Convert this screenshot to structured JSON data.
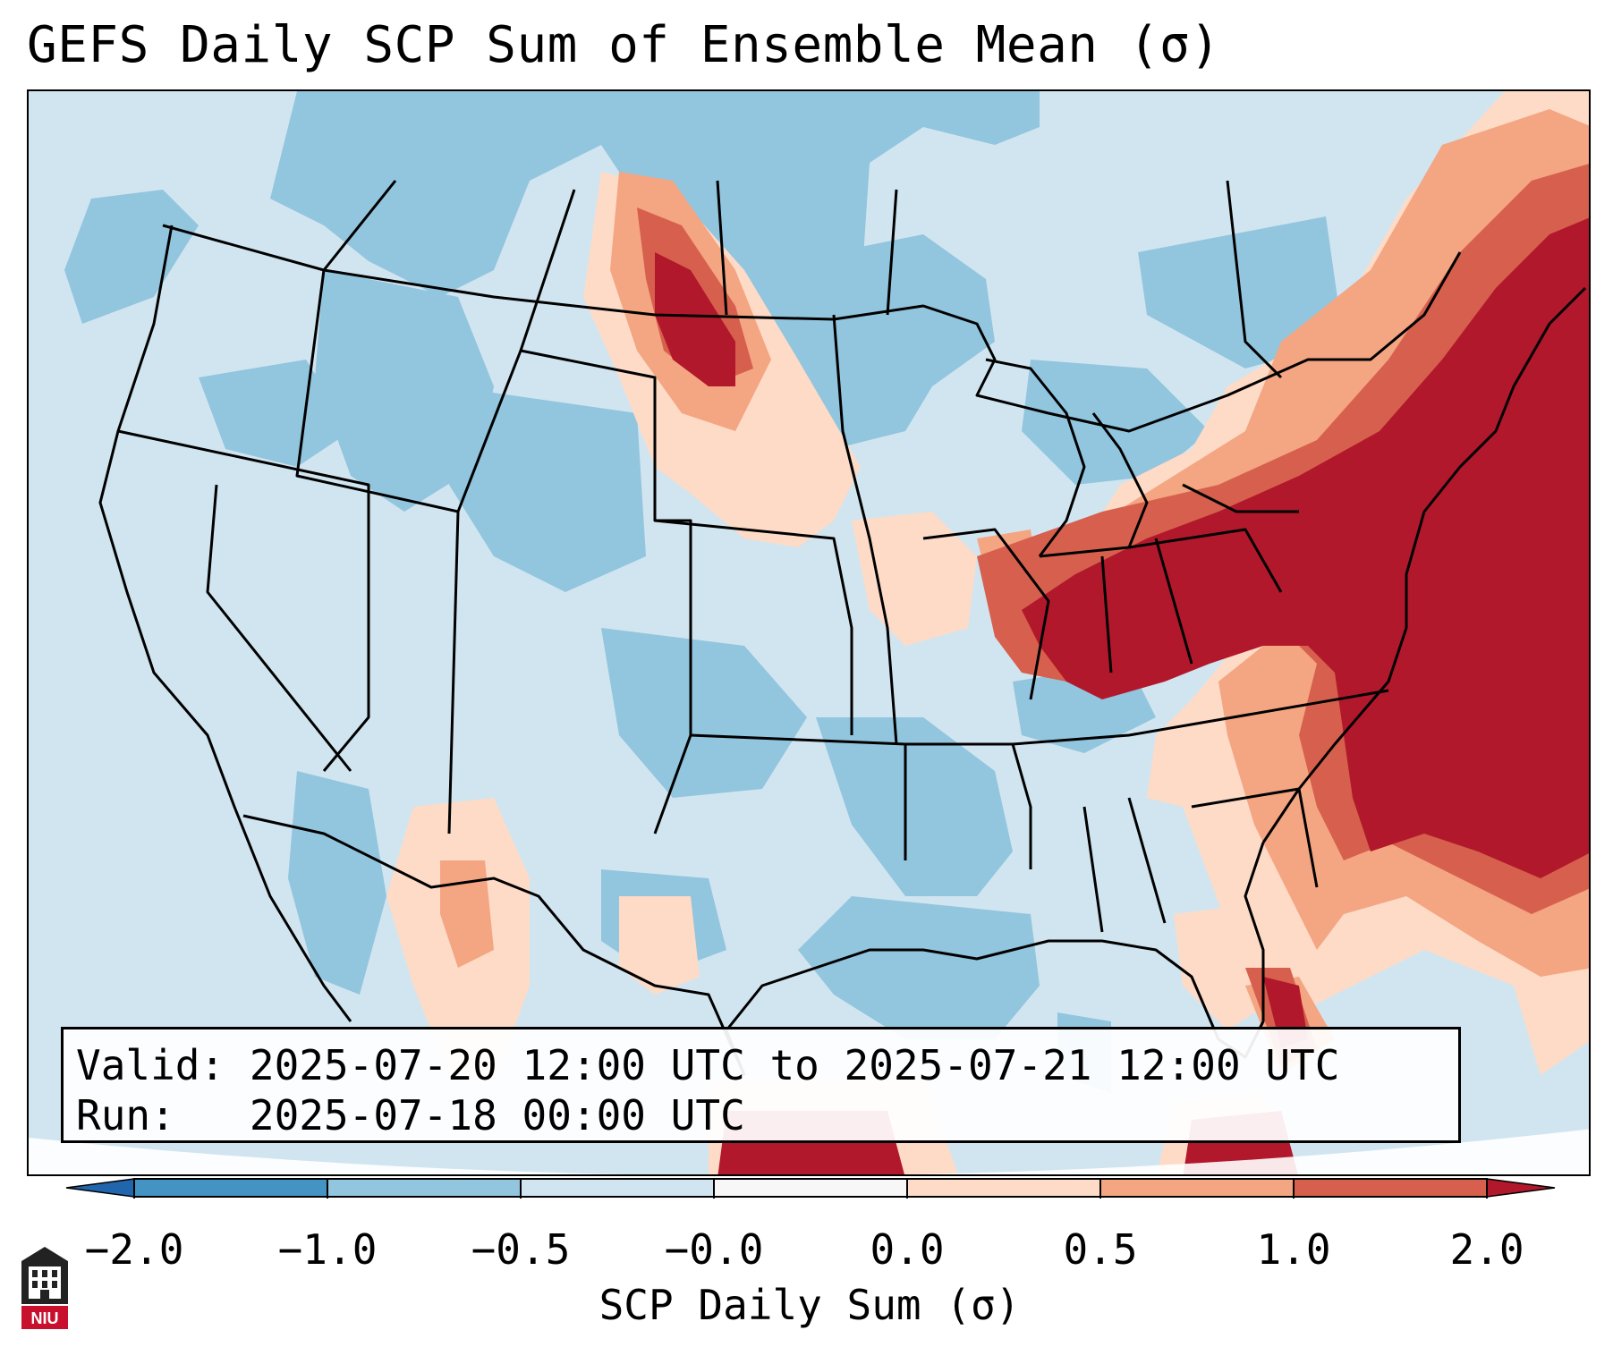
{
  "title": "GEFS Daily SCP Sum of Ensemble Mean (σ)",
  "valid_label": "Valid:",
  "valid_value": "2025-07-20 12:00 UTC to 2025-07-21 12:00 UTC",
  "run_label": "Run:",
  "run_value": "2025-07-18 00:00 UTC",
  "colorbar": {
    "label": "SCP Daily Sum (σ)",
    "ticks": [
      "−2.0",
      "−1.0",
      "−0.5",
      "−0.0",
      "0.0",
      "0.5",
      "1.0",
      "2.0"
    ],
    "colors": {
      "under": "#2166ac",
      "bin1": "#4393c3",
      "bin2": "#92c5de",
      "bin3": "#d1e5f0",
      "bin4": "#f7f7f7",
      "bin5": "#fddbc7",
      "bin6": "#f4a582",
      "bin7": "#d6604d",
      "over": "#b2182b"
    }
  },
  "logo_text": "NIU",
  "logo_icon": "university-seal-icon"
}
